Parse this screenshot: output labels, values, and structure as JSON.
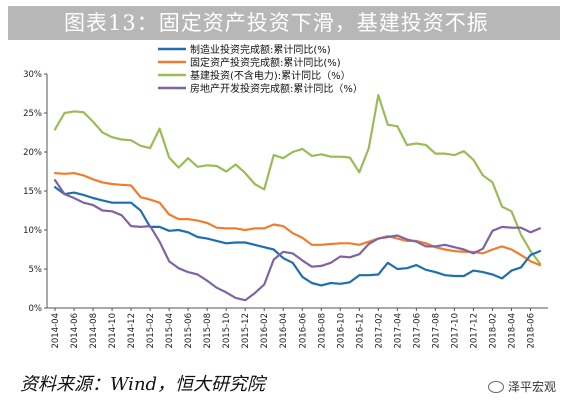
{
  "header": {
    "title": "图表13：固定资产投资下滑，基建投资不振"
  },
  "source": "资料来源：Wind，恒大研究院",
  "watermark": "泽平宏观",
  "chart_data": {
    "type": "line",
    "title": "图表13：固定资产投资下滑，基建投资不振",
    "xlabel": "",
    "ylabel": "",
    "ylim": [
      0,
      30
    ],
    "yticks": [
      "0%",
      "5%",
      "10%",
      "15%",
      "20%",
      "25%",
      "30%"
    ],
    "grid": false,
    "legend_position": "top",
    "x": [
      "2014-04",
      "2014-05",
      "2014-06",
      "2014-07",
      "2014-08",
      "2014-09",
      "2014-10",
      "2014-11",
      "2014-12",
      "2015-01",
      "2015-02",
      "2015-03",
      "2015-04",
      "2015-05",
      "2015-06",
      "2015-07",
      "2015-08",
      "2015-09",
      "2015-10",
      "2015-11",
      "2015-12",
      "2016-01",
      "2016-02",
      "2016-03",
      "2016-04",
      "2016-05",
      "2016-06",
      "2016-07",
      "2016-08",
      "2016-09",
      "2016-10",
      "2016-11",
      "2016-12",
      "2017-01",
      "2017-02",
      "2017-03",
      "2017-04",
      "2017-05",
      "2017-06",
      "2017-07",
      "2017-08",
      "2017-09",
      "2017-10",
      "2017-11",
      "2017-12",
      "2018-01",
      "2018-02",
      "2018-03",
      "2018-04",
      "2018-05",
      "2018-06",
      "2018-07"
    ],
    "x_tick_labels": [
      "2014-04",
      "2014-06",
      "2014-08",
      "2014-10",
      "2014-12",
      "2015-02",
      "2015-04",
      "2015-06",
      "2015-08",
      "2015-10",
      "2015-12",
      "2016-02",
      "2016-04",
      "2016-06",
      "2016-08",
      "2016-10",
      "2016-12",
      "2017-02",
      "2017-04",
      "2017-06",
      "2017-08",
      "2017-10",
      "2017-12",
      "2018-02",
      "2018-04",
      "2018-06"
    ],
    "series": [
      {
        "name": "制造业投资完成额:累计同比(%)",
        "color": "#1f6fae",
        "values": [
          15.5,
          14.6,
          14.8,
          14.5,
          14.1,
          13.8,
          13.5,
          13.5,
          13.5,
          12.5,
          10.4,
          10.4,
          9.9,
          10.0,
          9.7,
          9.1,
          8.9,
          8.6,
          8.3,
          8.4,
          8.4,
          8.1,
          7.8,
          7.5,
          6.4,
          5.8,
          4.0,
          3.2,
          2.9,
          3.2,
          3.1,
          3.3,
          4.2,
          4.2,
          4.3,
          5.8,
          5.0,
          5.1,
          5.5,
          4.9,
          4.6,
          4.2,
          4.1,
          4.1,
          4.8,
          4.6,
          4.3,
          3.8,
          4.8,
          5.2,
          6.8,
          7.3
        ]
      },
      {
        "name": "固定资产投资完成额:累计同比(%)",
        "color": "#ef7d31",
        "values": [
          17.3,
          17.2,
          17.3,
          17.0,
          16.5,
          16.1,
          15.9,
          15.8,
          15.7,
          14.2,
          13.9,
          13.5,
          12.0,
          11.4,
          11.4,
          11.2,
          10.9,
          10.3,
          10.2,
          10.2,
          10.0,
          10.2,
          10.2,
          10.7,
          10.5,
          9.6,
          9.0,
          8.1,
          8.1,
          8.2,
          8.3,
          8.3,
          8.1,
          8.5,
          8.9,
          9.2,
          8.9,
          8.6,
          8.6,
          8.3,
          7.8,
          7.5,
          7.3,
          7.2,
          7.2,
          7.0,
          7.5,
          7.9,
          7.5,
          6.8,
          6.0,
          5.5
        ]
      },
      {
        "name": "基建投资(不含电力):累计同比（%）",
        "color": "#9bbb59",
        "values": [
          22.9,
          25.0,
          25.2,
          25.1,
          23.9,
          22.5,
          21.9,
          21.6,
          21.5,
          20.8,
          20.5,
          23.0,
          19.3,
          18.0,
          19.2,
          18.1,
          18.3,
          18.2,
          17.5,
          18.4,
          17.3,
          15.9,
          15.2,
          19.6,
          19.2,
          20.0,
          20.4,
          19.5,
          19.7,
          19.4,
          19.4,
          19.3,
          17.4,
          20.5,
          27.3,
          23.5,
          23.3,
          20.9,
          21.1,
          20.9,
          19.8,
          19.8,
          19.6,
          20.1,
          19.0,
          17.0,
          16.1,
          13.0,
          12.4,
          9.4,
          7.3,
          5.7
        ]
      },
      {
        "name": "房地产开发投资完成额:累计同比（%）",
        "color": "#8064a2",
        "values": [
          16.4,
          14.6,
          14.1,
          13.5,
          13.2,
          12.5,
          12.4,
          11.9,
          10.5,
          10.4,
          10.5,
          8.5,
          6.0,
          5.1,
          4.6,
          4.3,
          3.5,
          2.6,
          2.0,
          1.3,
          1.0,
          1.9,
          3.0,
          6.2,
          7.2,
          7.0,
          6.1,
          5.3,
          5.4,
          5.8,
          6.6,
          6.5,
          6.9,
          8.2,
          8.9,
          9.1,
          9.3,
          8.8,
          8.5,
          7.9,
          7.9,
          8.1,
          7.8,
          7.5,
          7.0,
          7.6,
          9.9,
          10.4,
          10.3,
          10.3,
          9.7,
          10.2
        ]
      }
    ]
  }
}
